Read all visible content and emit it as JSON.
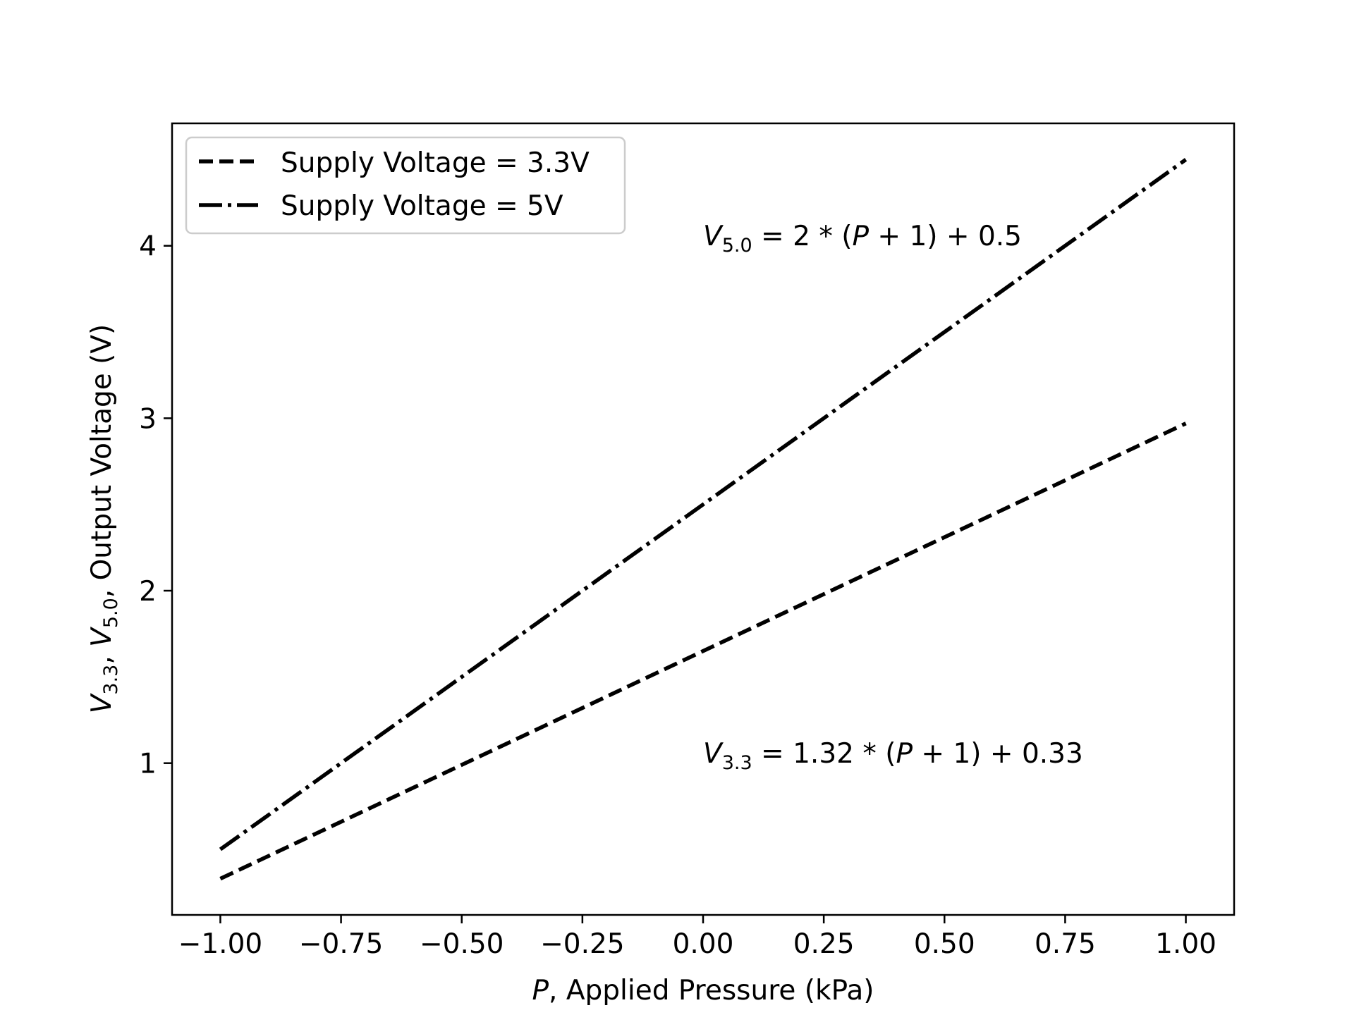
{
  "chart_data": {
    "type": "line",
    "xlabel_var": "P",
    "xlabel_rest": ", Applied Pressure (kPa)",
    "ylabel_parts": {
      "v1_var": "V",
      "v1_sub": "3.3",
      "sep1": ", ",
      "v2_var": "V",
      "v2_sub": "5.0",
      "rest": ", Output Voltage (V)"
    },
    "xlim": [
      -1.1,
      1.1
    ],
    "ylim": [
      0.12,
      4.71
    ],
    "x_ticks": [
      -1.0,
      -0.75,
      -0.5,
      -0.25,
      0.0,
      0.25,
      0.5,
      0.75,
      1.0
    ],
    "x_tick_labels": [
      "−1.00",
      "−0.75",
      "−0.50",
      "−0.25",
      "0.00",
      "0.25",
      "0.50",
      "0.75",
      "1.00"
    ],
    "y_ticks": [
      1,
      2,
      3,
      4
    ],
    "y_tick_labels": [
      "1",
      "2",
      "3",
      "4"
    ],
    "grid": false,
    "legend_position": "top-left",
    "series": [
      {
        "name": "Supply Voltage = 3.3V",
        "style": "dashed",
        "color": "#000000",
        "x": [
          -1.0,
          1.0
        ],
        "y": [
          0.33,
          2.97
        ]
      },
      {
        "name": "Supply Voltage = 5V",
        "style": "dashdot",
        "color": "#000000",
        "x": [
          -1.0,
          1.0
        ],
        "y": [
          0.5,
          4.5
        ]
      }
    ],
    "annotations": [
      {
        "var": "V",
        "sub": "5.0",
        "rest": " = 2 * (",
        "pvar": "P",
        "tail": " + 1) + 0.5",
        "x": 0.0,
        "y": 4.06
      },
      {
        "var": "V",
        "sub": "3.3",
        "rest": " = 1.32 * (",
        "pvar": "P",
        "tail": " + 1) + 0.33",
        "x": 0.0,
        "y": 1.06
      }
    ]
  }
}
